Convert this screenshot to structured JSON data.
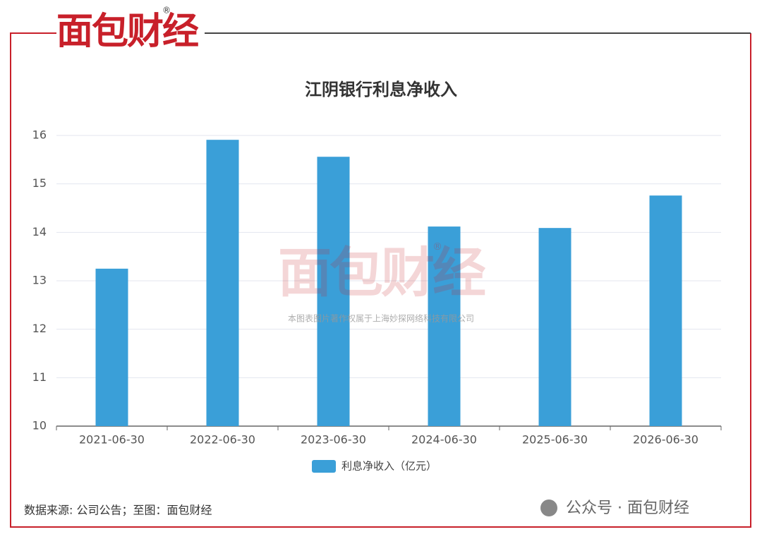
{
  "logo": {
    "text": "面包财经",
    "mark": "®"
  },
  "watermark": {
    "text": "面包财经",
    "mark": "®",
    "caption": "本图表图片著作权属于上海妙探网络科技有限公司"
  },
  "source": "数据来源: 公司公告；至图：面包财经",
  "footer": "公众号 · 面包财经",
  "chart_data": {
    "type": "bar",
    "title": "江阴银行利息净收入",
    "categories": [
      "2021-06-30",
      "2022-06-30",
      "2023-06-30",
      "2024-06-30",
      "2025-06-30",
      "2026-06-30"
    ],
    "series": [
      {
        "name": "利息净收入（亿元）",
        "color": "#3a9fd8",
        "values": [
          13.25,
          15.91,
          15.56,
          14.12,
          14.09,
          14.76
        ]
      }
    ],
    "ylim": [
      10,
      16
    ],
    "yticks": [
      10,
      11,
      12,
      13,
      14,
      15,
      16
    ],
    "grid": true
  }
}
